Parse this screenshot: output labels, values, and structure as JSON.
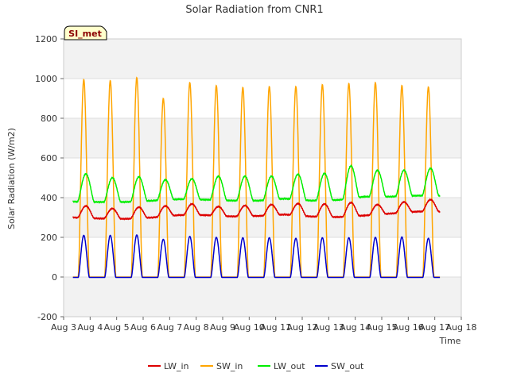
{
  "chart_data": {
    "type": "line",
    "title": "Solar Radiation from CNR1",
    "xlabel": "Time",
    "ylabel": "Solar Radiation (W/m2)",
    "badge": "SI_met",
    "xlim": [
      3,
      18
    ],
    "ylim": [
      -200,
      1200
    ],
    "x_ticks": [
      "Aug 3",
      "Aug 4",
      "Aug 5",
      "Aug 6",
      "Aug 7",
      "Aug 8",
      "Aug 9",
      "Aug 10",
      "Aug 11",
      "Aug 12",
      "Aug 13",
      "Aug 14",
      "Aug 15",
      "Aug 16",
      "Aug 17",
      "Aug 18"
    ],
    "y_ticks": [
      -200,
      0,
      200,
      400,
      600,
      800,
      1000,
      1200
    ],
    "grid": true,
    "legend_position": "bottom",
    "series": [
      {
        "name": "LW_in",
        "color": "#dd0000",
        "night": [
          300,
          295,
          293,
          300,
          312,
          312,
          305,
          308,
          315,
          305,
          302,
          310,
          320,
          330
        ],
        "peak": [
          358,
          345,
          352,
          358,
          368,
          355,
          360,
          365,
          370,
          368,
          375,
          365,
          378,
          390
        ]
      },
      {
        "name": "SW_in",
        "color": "#ffa500",
        "night": [
          0,
          0,
          0,
          0,
          0,
          0,
          0,
          0,
          0,
          0,
          0,
          0,
          0,
          0
        ],
        "peak": [
          995,
          990,
          1005,
          900,
          980,
          965,
          955,
          960,
          960,
          970,
          975,
          980,
          965,
          958
        ]
      },
      {
        "name": "LW_out",
        "color": "#00ee00",
        "night": [
          380,
          378,
          378,
          385,
          392,
          390,
          385,
          385,
          395,
          385,
          388,
          405,
          405,
          410
        ],
        "peak": [
          520,
          500,
          505,
          490,
          495,
          508,
          508,
          508,
          518,
          522,
          560,
          538,
          538,
          548
        ]
      },
      {
        "name": "SW_out",
        "color": "#0000cc",
        "night": [
          -2,
          -2,
          -2,
          -2,
          -2,
          -2,
          -2,
          -2,
          -2,
          -2,
          -2,
          -2,
          -2,
          -2
        ],
        "peak": [
          210,
          210,
          212,
          190,
          205,
          200,
          198,
          198,
          195,
          198,
          198,
          200,
          202,
          195
        ]
      }
    ]
  }
}
